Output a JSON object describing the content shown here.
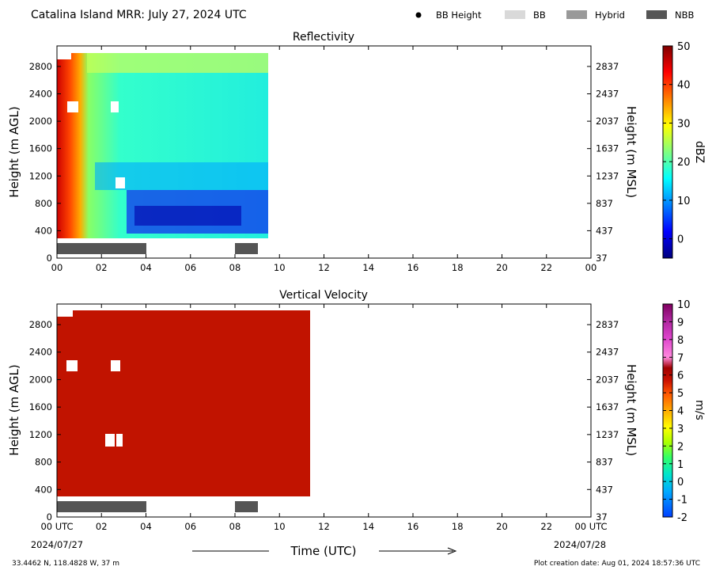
{
  "header": {
    "title": "Catalina Island MRR:  July 27, 2024 UTC",
    "legend": [
      {
        "label": "BB Height",
        "kind": "dot",
        "color": "#000000"
      },
      {
        "label": "BB",
        "kind": "box",
        "color": "#d9d9d9"
      },
      {
        "label": "Hybrid",
        "kind": "box",
        "color": "#999999"
      },
      {
        "label": "NBB",
        "kind": "box",
        "color": "#555555"
      }
    ]
  },
  "footer": {
    "location": "33.4462 N, 118.4828 W, 37 m",
    "creation": "Plot creation date: Aug 01, 2024 18:57:36 UTC",
    "xlabel": "Time (UTC)",
    "start_date": "2024/07/27",
    "end_date": "2024/07/28"
  },
  "chart_data": [
    {
      "type": "heatmap",
      "title": "Reflectivity",
      "ylabel": "Height (m AGL)",
      "ylabel_right": "Height (m MSL)",
      "colorbar_label": "dBZ",
      "colorbar_ticks": [
        "50",
        "40",
        "30",
        "20",
        "10",
        "0"
      ],
      "colorbar_range": [
        -5,
        50
      ],
      "colormap": "jet",
      "xlim": [
        0,
        24
      ],
      "ylim": [
        0,
        3100
      ],
      "x_ticks": [
        "00",
        "02",
        "04",
        "06",
        "08",
        "10",
        "12",
        "14",
        "16",
        "18",
        "20",
        "22",
        "00"
      ],
      "y_ticks_left": [
        "0",
        "400",
        "800",
        "1200",
        "1600",
        "2000",
        "2400",
        "2800"
      ],
      "y_ticks_right": [
        "37",
        "437",
        "837",
        "1237",
        "1637",
        "2037",
        "2437",
        "2837"
      ],
      "data_time_range": [
        0,
        9.5
      ],
      "data_height_range": [
        300,
        3000
      ],
      "nbb_periods": [
        [
          0,
          4
        ],
        [
          8,
          9
        ]
      ],
      "profile_summary": {
        "time_hours": [
          0,
          0.5,
          1,
          1.5,
          2,
          3,
          4,
          5,
          6,
          7,
          8,
          9,
          9.5
        ],
        "heights_m": [
          400,
          800,
          1200,
          1600,
          2000,
          2400,
          2800
        ],
        "reflectivity_dbz": [
          [
            40,
            38,
            30,
            12,
            13,
            12,
            8,
            8,
            8,
            8,
            8,
            10,
            10
          ],
          [
            45,
            40,
            30,
            14,
            14,
            6,
            2,
            1,
            1,
            1,
            1,
            4,
            5
          ],
          [
            45,
            44,
            30,
            18,
            17,
            12,
            11,
            11,
            11,
            11,
            11,
            12,
            13
          ],
          [
            48,
            45,
            33,
            21,
            19,
            18,
            17,
            17,
            17,
            17,
            17,
            18,
            18
          ],
          [
            48,
            46,
            32,
            22,
            20,
            18,
            17,
            16,
            16,
            16,
            17,
            18,
            18
          ],
          [
            48,
            46,
            32,
            22,
            20,
            17,
            15,
            14,
            14,
            14,
            15,
            17,
            18
          ],
          [
            48,
            45,
            30,
            24,
            23,
            22,
            21,
            21,
            21,
            21,
            21,
            22,
            22
          ]
        ]
      }
    },
    {
      "type": "heatmap",
      "title": "Vertical Velocity",
      "ylabel": "Height (m AGL)",
      "ylabel_right": "Height (m MSL)",
      "colorbar_label": "m/s",
      "colorbar_ticks": [
        "10",
        "9",
        "8",
        "7",
        "6",
        "5",
        "4",
        "3",
        "2",
        "1",
        "0",
        "-1",
        "-2"
      ],
      "colorbar_range": [
        -2,
        10
      ],
      "colormap": "velocity",
      "xlim": [
        0,
        24
      ],
      "ylim": [
        0,
        3100
      ],
      "x_ticks": [
        "00 UTC",
        "02",
        "04",
        "06",
        "08",
        "10",
        "12",
        "14",
        "16",
        "18",
        "20",
        "22",
        "00 UTC"
      ],
      "y_ticks_left": [
        "0",
        "400",
        "800",
        "1200",
        "1600",
        "2000",
        "2400",
        "2800"
      ],
      "y_ticks_right": [
        "37",
        "437",
        "837",
        "1237",
        "1637",
        "2037",
        "2437",
        "2837"
      ],
      "data_time_range": [
        0,
        11.4
      ],
      "data_height_range": [
        300,
        3000
      ],
      "fill_value_ms": 5.6,
      "fill_color": "#c11300",
      "nbb_periods": [
        [
          0,
          4
        ],
        [
          8,
          9
        ]
      ]
    }
  ]
}
